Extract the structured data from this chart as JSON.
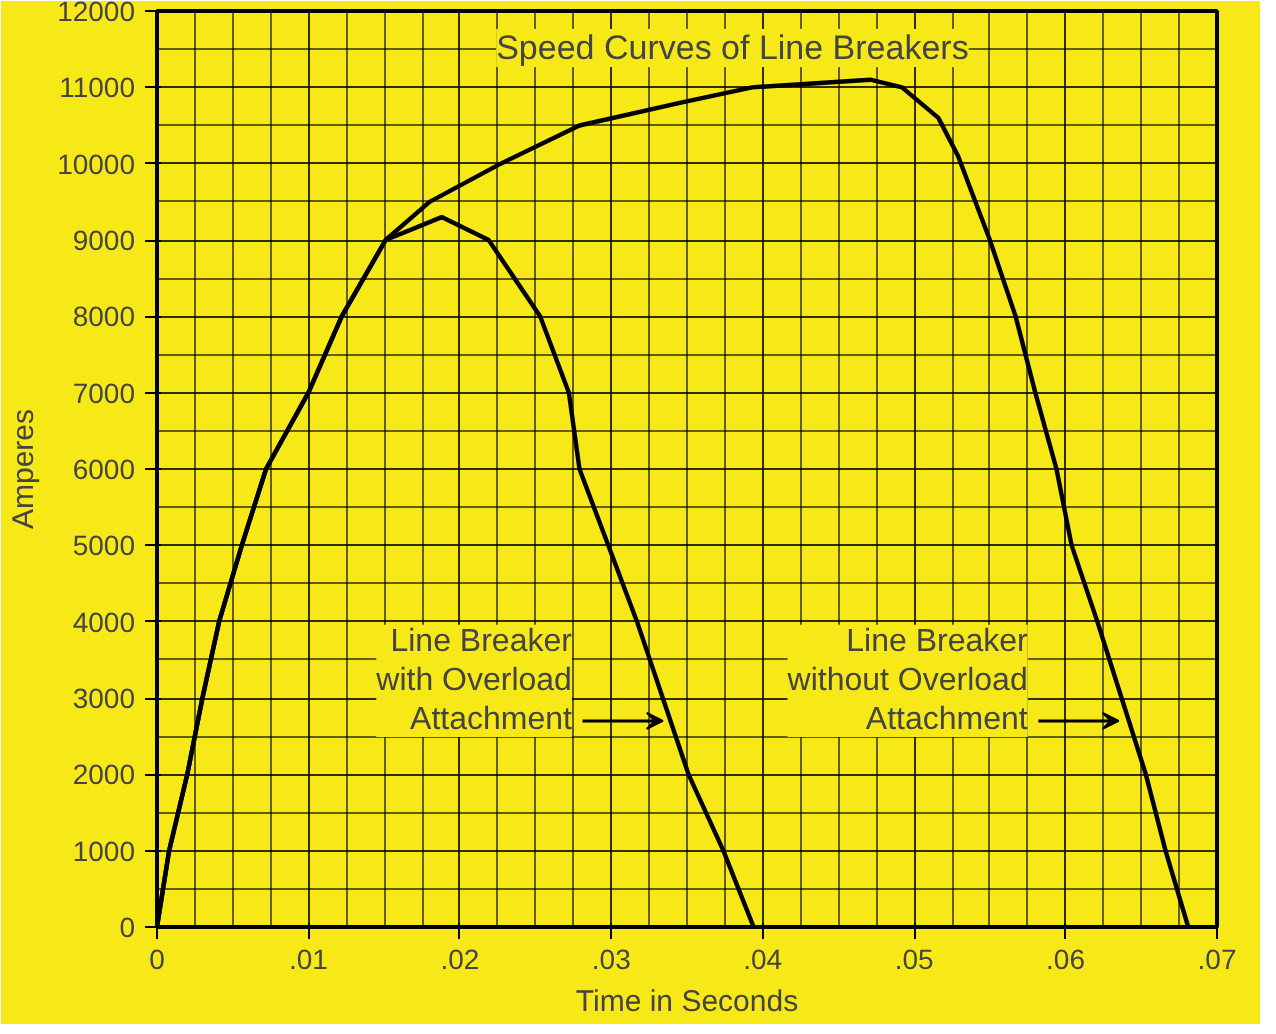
{
  "chart_data": {
    "type": "line",
    "title": "Speed Curves of Line Breakers",
    "xlabel": "Time in Seconds",
    "ylabel": "Amperes",
    "xlim": [
      0,
      0.07
    ],
    "ylim": [
      0,
      12000
    ],
    "xticks": [
      0,
      {
        "value": 0.01,
        "label": ".01"
      },
      {
        "value": 0.02,
        "label": ".02"
      },
      {
        "value": 0.03,
        "label": ".03"
      },
      {
        "value": 0.04,
        "label": ".04"
      },
      {
        "value": 0.05,
        "label": ".05"
      },
      {
        "value": 0.06,
        "label": ".06"
      },
      {
        "value": 0.07,
        "label": ".07"
      }
    ],
    "yticks": [
      0,
      1000,
      2000,
      3000,
      4000,
      5000,
      6000,
      7000,
      8000,
      9000,
      10000,
      11000,
      12000
    ],
    "grid": true,
    "marker": "none",
    "line_style": "solid",
    "series": [
      {
        "color": "#000000",
        "x": [
          0,
          0.0008,
          0.002,
          0.003,
          0.0041,
          0.0056,
          0.0072,
          0.01,
          0.0122,
          0.0151,
          0.018,
          0.0227,
          0.0279,
          0.0346,
          0.0393,
          0.0471,
          0.0492,
          0.0516,
          0.0529,
          0.055,
          0.0567,
          0.058,
          0.0594,
          0.0604,
          0.0621,
          0.0637,
          0.0653,
          0.0666,
          0.0681
        ],
        "values": [
          0,
          1000,
          2000,
          3000,
          4000,
          5000,
          6000,
          7000,
          8000,
          9000,
          9500,
          10000,
          10500,
          10800,
          11000,
          11100,
          11000,
          10600,
          10100,
          9000,
          8000,
          7000,
          6000,
          5000,
          4000,
          3000,
          2000,
          1000,
          0
        ]
      },
      {
        "color": "#000000",
        "x": [
          0,
          0.0008,
          0.002,
          0.003,
          0.0041,
          0.0056,
          0.0072,
          0.01,
          0.0122,
          0.0151,
          0.0188,
          0.0219,
          0.0253,
          0.0272,
          0.0279,
          0.0298,
          0.0317,
          0.0334,
          0.0351,
          0.0374,
          0.0394
        ],
        "values": [
          0,
          1000,
          2000,
          3000,
          4000,
          5000,
          6000,
          7000,
          8000,
          9000,
          9300,
          9000,
          8000,
          7000,
          6000,
          5000,
          4000,
          3000,
          2000,
          1000,
          0
        ]
      }
    ],
    "annotations": [
      {
        "text": "Line Breaker\nwith Overload\nAttachment",
        "x": 0.0334,
        "y": 2700
      },
      {
        "text": "Line Breaker\nwithout Overload\nAttachment",
        "x": 0.0635,
        "y": 2700
      }
    ]
  }
}
